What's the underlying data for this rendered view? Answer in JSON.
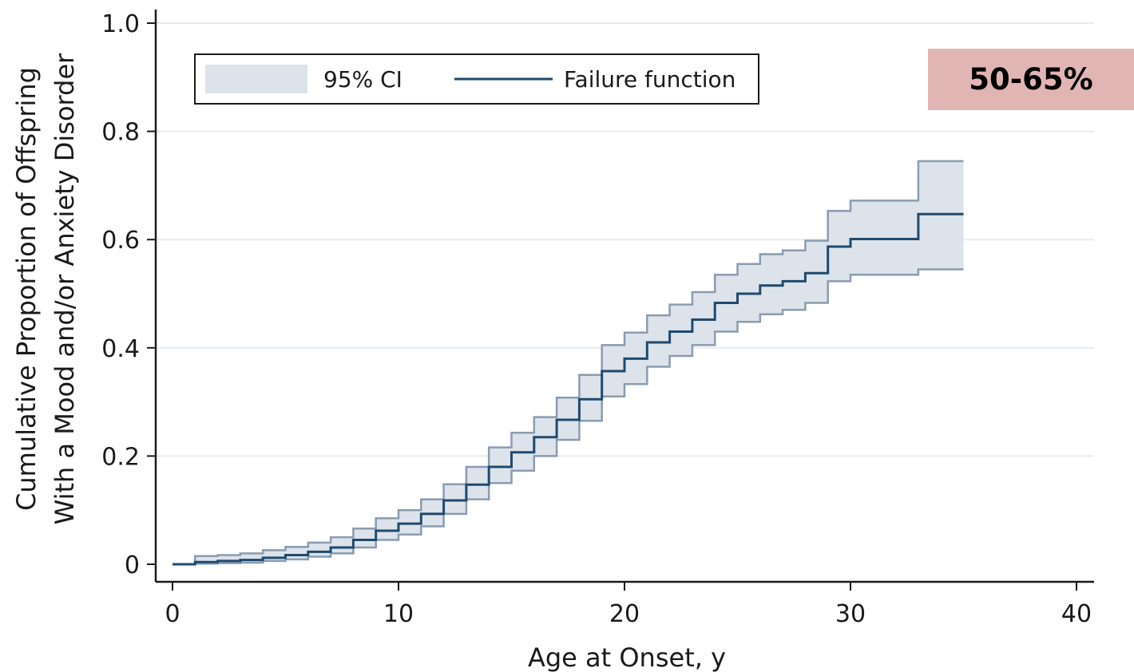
{
  "chart_data": {
    "type": "line",
    "subtype": "step",
    "xlabel": "Age at Onset, y",
    "ylabel_lines": [
      "Cumulative Proportion of Offspring",
      "With a Mood and/or Anxiety Disorder"
    ],
    "xlim": [
      0,
      40
    ],
    "ylim": [
      0,
      1.0
    ],
    "x_ticks": [
      0,
      10,
      20,
      30,
      40
    ],
    "x_tick_labels": [
      "0",
      "10",
      "20",
      "30",
      "40"
    ],
    "y_ticks": [
      0,
      0.2,
      0.4,
      0.6,
      0.8,
      1.0
    ],
    "y_tick_labels": [
      "0",
      "0.2",
      "0.4",
      "0.6",
      "0.8",
      "1.0"
    ],
    "grid": "horizontal",
    "legend": {
      "placement": "top-left",
      "entries": [
        {
          "label": "95% CI",
          "kind": "band"
        },
        {
          "label": "Failure function",
          "kind": "line"
        }
      ]
    },
    "series": [
      {
        "name": "Failure function",
        "x": [
          0,
          1,
          2,
          3,
          4,
          5,
          6,
          7,
          8,
          9,
          10,
          11,
          12,
          13,
          14,
          15,
          16,
          17,
          18,
          19,
          20,
          21,
          22,
          23,
          24,
          25,
          26,
          27,
          28,
          29,
          30,
          31,
          32,
          33,
          35
        ],
        "y": [
          0,
          0.004,
          0.006,
          0.008,
          0.012,
          0.017,
          0.023,
          0.031,
          0.045,
          0.062,
          0.075,
          0.093,
          0.118,
          0.147,
          0.18,
          0.207,
          0.235,
          0.267,
          0.305,
          0.357,
          0.38,
          0.41,
          0.43,
          0.452,
          0.483,
          0.5,
          0.515,
          0.523,
          0.538,
          0.587,
          0.601,
          0.601,
          0.601,
          0.647,
          0.647
        ]
      },
      {
        "name": "95% CI",
        "x": [
          0,
          1,
          2,
          3,
          4,
          5,
          6,
          7,
          8,
          9,
          10,
          11,
          12,
          13,
          14,
          15,
          16,
          17,
          18,
          19,
          20,
          21,
          22,
          23,
          24,
          25,
          26,
          27,
          28,
          29,
          30,
          31,
          32,
          33,
          35
        ],
        "lower": [
          0,
          0.001,
          0.002,
          0.003,
          0.006,
          0.009,
          0.014,
          0.02,
          0.031,
          0.045,
          0.055,
          0.07,
          0.093,
          0.12,
          0.15,
          0.173,
          0.2,
          0.23,
          0.265,
          0.31,
          0.333,
          0.365,
          0.385,
          0.405,
          0.43,
          0.448,
          0.462,
          0.47,
          0.483,
          0.523,
          0.535,
          0.535,
          0.535,
          0.545,
          0.545
        ],
        "upper": [
          0,
          0.015,
          0.017,
          0.02,
          0.026,
          0.032,
          0.04,
          0.05,
          0.066,
          0.085,
          0.1,
          0.12,
          0.148,
          0.18,
          0.216,
          0.243,
          0.272,
          0.308,
          0.35,
          0.405,
          0.428,
          0.46,
          0.48,
          0.503,
          0.535,
          0.555,
          0.573,
          0.58,
          0.598,
          0.653,
          0.672,
          0.672,
          0.672,
          0.745,
          0.745
        ]
      }
    ],
    "annotations": [
      {
        "text": "50-65%",
        "background": "#e2b5b5"
      }
    ]
  },
  "colors": {
    "line": "#1f4a6e",
    "band_fill": "#dde3ea",
    "band_edge": "#8a9cb0",
    "grid": "#e6ecef",
    "axis": "#1a1a1a"
  }
}
